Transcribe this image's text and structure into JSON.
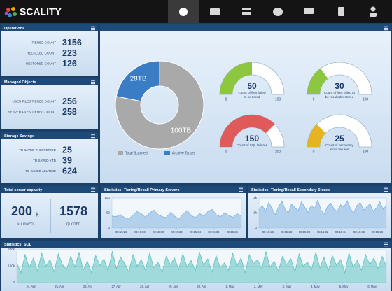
{
  "header": {
    "logo": "SCALITY"
  },
  "stats_panels": [
    {
      "title": "Operations",
      "rows": [
        {
          "label": "TIERED COUNT",
          "value": 3156
        },
        {
          "label": "RECALLED COUNT",
          "value": 223
        },
        {
          "label": "RESTORED COUNT",
          "value": 126
        }
      ]
    },
    {
      "title": "Managed Objects",
      "rows": [
        {
          "label": "USER FILES TIERED COUNT",
          "value": 256
        },
        {
          "label": "SERVER FILES TIERED COUNT",
          "value": 258
        }
      ]
    },
    {
      "title": "Storage Savings",
      "rows": [
        {
          "label": "TB SAVED THIS PERIOD",
          "value": 25
        },
        {
          "label": "TB SAVED YTD",
          "value": 39
        },
        {
          "label": "TB SAVED ALL TIME",
          "value": 624
        }
      ]
    }
  ],
  "capacity": {
    "title": "Total server capacity",
    "allowed": {
      "value": 200,
      "unit": "k",
      "label": "ALLOWED"
    },
    "quoted": {
      "value": 1578,
      "label": "QUOTED"
    }
  },
  "chart_data": [
    {
      "type": "pie",
      "donut": true,
      "categories": [
        "Total Scanned",
        "Archive Target"
      ],
      "values": [
        100,
        28
      ],
      "value_labels": [
        "100TB",
        "28TB"
      ],
      "colors": [
        "#a9a9a9",
        "#3b7dc4"
      ]
    },
    {
      "type": "gauge",
      "value": 50,
      "ylim": [
        0,
        100
      ],
      "yticks": [
        0,
        100
      ],
      "title": [
        "Count of files failed",
        "to be tiered"
      ],
      "color": "#8dc63f"
    },
    {
      "type": "gauge",
      "value": 30,
      "ylim": [
        0,
        100
      ],
      "yticks": [
        0,
        100
      ],
      "title": [
        "Count of files failed to",
        "be recalled/restored"
      ],
      "color": "#8dc63f"
    },
    {
      "type": "gauge",
      "value": 150,
      "ylim": [
        0,
        200
      ],
      "yticks": [
        0,
        200
      ],
      "title": [
        "Count of SQL failures"
      ],
      "color": "#e05a5a"
    },
    {
      "type": "gauge",
      "value": 25,
      "ylim": [
        0,
        100
      ],
      "yticks": [
        0,
        100
      ],
      "title": [
        "Count of secondary",
        "store failures"
      ],
      "color": "#e6b422"
    },
    {
      "type": "area",
      "title": "Statistics: Tiering/Recall Primary Servers",
      "color": "#7fb2e0",
      "values": [
        40,
        38,
        45,
        35,
        30,
        42,
        55,
        48,
        36,
        50,
        60,
        45,
        38,
        35,
        52,
        40,
        30,
        45,
        58,
        42,
        35,
        48,
        40,
        55,
        62,
        44,
        38,
        50,
        42,
        36,
        48,
        40
      ],
      "ylim": [
        0,
        100
      ],
      "yticks": [
        0,
        50,
        100
      ],
      "x_labels": [
        "08:15:26",
        "08:15:28",
        "08:15:30",
        "08:15:32",
        "08:15:34",
        "08:15:36",
        "08:15:38"
      ]
    },
    {
      "type": "area",
      "title": "Statistics: Tiering/Recall Secondary Stores",
      "color": "#7fb2e0",
      "values": [
        1200,
        1500,
        1100,
        1700,
        1300,
        900,
        1400,
        1800,
        1250,
        1000,
        1600,
        1350,
        1150,
        1750,
        1400,
        1050,
        1500,
        1300,
        1850,
        1200,
        950,
        1450,
        1650,
        1250,
        1100,
        1550,
        1400,
        1800,
        1300,
        1000,
        1500,
        1700,
        1200,
        1400,
        1600,
        1100,
        1350,
        1750,
        1250,
        1500
      ],
      "ylim": [
        0,
        2000
      ],
      "yticks": [
        0,
        {
          "value": 1000,
          "label": "1k"
        },
        {
          "value": 2000,
          "label": "2k"
        }
      ],
      "x_labels": [
        "08:15:26",
        "08:15:28",
        "08:15:30",
        "08:15:32",
        "08:15:34",
        "08:15:36",
        "08:15:38"
      ]
    },
    {
      "type": "area",
      "title": "Statistics: SQL",
      "color": "#5fc3c0",
      "values": [
        120000,
        60000,
        170000,
        90000,
        150000,
        70000,
        180000,
        100000,
        140000,
        65000,
        175000,
        110000,
        80000,
        160000,
        95000,
        185000,
        75000,
        130000,
        60000,
        165000,
        105000,
        145000,
        70000,
        190000,
        85000,
        155000,
        115000,
        65000,
        170000,
        100000,
        140000,
        75000,
        180000,
        90000,
        125000,
        60000,
        160000,
        110000,
        150000,
        80000,
        175000,
        95000,
        135000,
        70000,
        185000,
        105000,
        145000,
        65000,
        165000,
        90000,
        120000,
        75000,
        180000,
        100000,
        150000,
        60000,
        170000,
        115000,
        140000,
        85000,
        190000,
        95000,
        130000,
        70000,
        160000,
        110000,
        145000,
        65000,
        175000,
        100000,
        125000,
        80000,
        185000,
        90000,
        155000,
        70000,
        165000,
        105000,
        140000,
        60000,
        180000,
        95000,
        135000,
        75000,
        170000,
        110000,
        150000,
        85000,
        160000,
        100000
      ],
      "ylim": [
        0,
        200000
      ],
      "yticks": [
        0,
        {
          "value": 100000,
          "label": "100k"
        },
        {
          "value": 200000,
          "label": "200k"
        }
      ],
      "x_labels": [
        "24. Apr",
        "25. Apr",
        "26. Apr",
        "27. Apr",
        "28. Apr",
        "29. Apr",
        "30. Apr",
        "1. May",
        "2. May",
        "3. May",
        "4. May",
        "5. May",
        "6. May"
      ]
    }
  ]
}
